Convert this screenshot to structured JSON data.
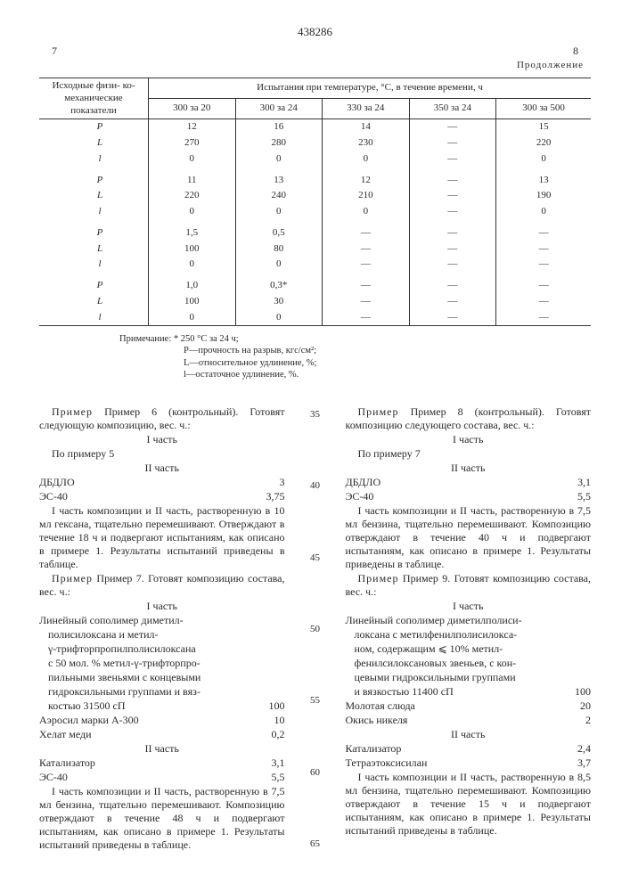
{
  "doc_number": "438286",
  "page_left": "7",
  "page_right": "8",
  "continuation": "Продолжение",
  "table": {
    "header_left": "Исходные физи-\nко-механические\nпоказатели",
    "header_span": "Испытания при температуре, °C, в течение времени, ч",
    "cols": [
      "300 за 20",
      "300 за 24",
      "330 за 24",
      "350 за 24",
      "300 за 500"
    ],
    "groups": [
      [
        [
          "P",
          "12",
          "16",
          "14",
          "—",
          "15"
        ],
        [
          "L",
          "270",
          "280",
          "230",
          "—",
          "220"
        ],
        [
          "l",
          "0",
          "0",
          "0",
          "—",
          "0"
        ]
      ],
      [
        [
          "P",
          "11",
          "13",
          "12",
          "—",
          "13"
        ],
        [
          "L",
          "220",
          "240",
          "210",
          "—",
          "190"
        ],
        [
          "l",
          "0",
          "0",
          "0",
          "—",
          "0"
        ]
      ],
      [
        [
          "P",
          "1,5",
          "0,5",
          "—",
          "—",
          "—"
        ],
        [
          "L",
          "100",
          "80",
          "—",
          "—",
          "—"
        ],
        [
          "l",
          "0",
          "0",
          "—",
          "—",
          "—"
        ]
      ],
      [
        [
          "P",
          "1,0",
          "0,3*",
          "—",
          "—",
          "—"
        ],
        [
          "L",
          "100",
          "30",
          "—",
          "—",
          "—"
        ],
        [
          "l",
          "0",
          "0",
          "—",
          "—",
          "—"
        ]
      ]
    ]
  },
  "note": {
    "star": "Примечание: * 250 °C за 24 ч;",
    "lines": [
      "P—прочность на разрыв, кгс/см²;",
      "L—относительное удлинение, %;",
      "l—остаточное удлинение, %."
    ]
  },
  "rail": [
    "35",
    "40",
    "45",
    "50",
    "55",
    "60",
    "65"
  ],
  "left": {
    "ex6_head": "Пример 6 (контрольный). Готовят следующую композицию, вес. ч.:",
    "part1": "I часть",
    "by5": "По примеру 5",
    "part2": "II часть",
    "dbdlo": "ДБДЛО",
    "dbdlo_v": "3",
    "es40": "ЭС-40",
    "es40_v": "3,75",
    "ex6_body": "I часть композиции и II часть, растворенную в 10 мл гексана, тщательно перемешивают. Отверждают в течение 18 ч и подвергают испытаниям, как описано в примере 1. Результаты испытаний приведены в таблице.",
    "ex7_head": "Пример 7. Готовят композицию состава, вес. ч.:",
    "ex7_p1_l1": "Линейный сополимер диметил-",
    "ex7_p1_l2": "полисилоксана и метил-",
    "ex7_p1_l3": "γ-трифторпропилполисилоксана",
    "ex7_p1_l4": "с 50 мол. % метил-γ-трифторпро-",
    "ex7_p1_l5": "пильными звеньями с концевыми",
    "ex7_p1_l6": "гидроксильными группами и вяз-",
    "ex7_p1_l7": "костью 31500 сП",
    "ex7_v1": "100",
    "aerosil": "Аэросил марки А-300",
    "aerosil_v": "10",
    "chelat": "Хелат меди",
    "chelat_v": "0,2",
    "cat": "Катализатор",
    "cat_v": "3,1",
    "es40b": "ЭС-40",
    "es40b_v": "5,5",
    "ex7_body": "I часть композиции и II часть, растворенную в 7,5 мл бензина, тщательно перемешивают. Композицию отверждают в течение 48 ч и подвергают испытаниям, как описано в примере 1. Результаты испытаний приведены в таблице."
  },
  "right": {
    "ex8_head": "Пример 8 (контрольный). Готовят композицию следующего состава, вес. ч.:",
    "by7": "По примеру 7",
    "dbdlo": "ДБДЛО",
    "dbdlo_v": "3,1",
    "es40": "ЭС-40",
    "es40_v": "5,5",
    "ex8_body": "I часть композиции и II часть, растворенную в 7,5 мл бензина, тщательно перемешивают. Композицию отверждают в течение 40 ч и подвергают испытаниям, как описано в примере 1. Результаты приведены в таблице.",
    "ex9_head": "Пример 9. Готовят композицию состава, вес. ч.:",
    "ex9_l1": "Линейный сополимер диметилполиси-",
    "ex9_l2": "локсана с метилфенилполисилокса-",
    "ex9_l3": "ном, содержащим ⩽ 10% метил-",
    "ex9_l4": "фенилсилоксановых звеньев, с кон-",
    "ex9_l5": "цевыми гидроксильными группами",
    "ex9_l6": "и вязкостью 11400 сП",
    "ex9_v1": "100",
    "mica": "Молотая слюда",
    "mica_v": "20",
    "nio": "Окись никеля",
    "nio_v": "2",
    "cat": "Катализатор",
    "cat_v": "2,4",
    "teos": "Тетраэтоксисилан",
    "teos_v": "3,7",
    "ex9_body": "I часть композиции и II часть, растворенную в 8,5 мл бензина, тщательно перемешивают. Композицию отверждают в течение 15 ч и подвергают испытаниям, как описано в примере 1. Результаты испытаний приведены в таблице."
  }
}
